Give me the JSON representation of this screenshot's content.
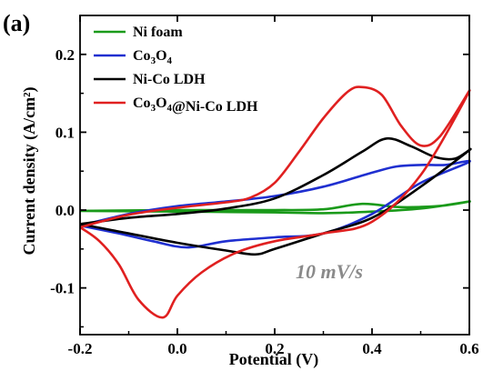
{
  "panel_label": "(a)",
  "annotation": "10 mV/s",
  "chart_data": {
    "type": "line",
    "xlabel": "Potential (V)",
    "ylabel": "Current density (A/cm²)",
    "xlim": [
      -0.2,
      0.6
    ],
    "ylim": [
      -0.16,
      0.25
    ],
    "x_ticks": [
      -0.2,
      0.0,
      0.2,
      0.4,
      0.6
    ],
    "x_tick_labels": [
      "-0.2",
      "0.0",
      "0.2",
      "0.4",
      "0.6"
    ],
    "y_ticks": [
      -0.1,
      0.0,
      0.1,
      0.2
    ],
    "y_tick_labels": [
      "-0.1",
      "0.0",
      "0.1",
      "0.2"
    ],
    "grid": false,
    "legend_position": "top-left",
    "series": [
      {
        "name": "Ni foam",
        "color": "#1a9a1a",
        "points": [
          [
            -0.2,
            -0.001
          ],
          [
            0.0,
            0.0
          ],
          [
            0.2,
            0.0
          ],
          [
            0.3,
            0.001
          ],
          [
            0.38,
            0.008
          ],
          [
            0.45,
            0.004
          ],
          [
            0.5,
            0.004
          ],
          [
            0.55,
            0.006
          ],
          [
            0.6,
            0.011
          ],
          [
            0.5,
            0.002
          ],
          [
            0.4,
            -0.002
          ],
          [
            0.3,
            -0.004
          ],
          [
            0.2,
            -0.003
          ],
          [
            0.0,
            -0.002
          ],
          [
            -0.2,
            -0.001
          ]
        ]
      },
      {
        "name": "Co3O4",
        "color": "#1f2fd0",
        "points": [
          [
            -0.2,
            -0.02
          ],
          [
            -0.1,
            -0.005
          ],
          [
            0.0,
            0.005
          ],
          [
            0.1,
            0.011
          ],
          [
            0.2,
            0.018
          ],
          [
            0.3,
            0.03
          ],
          [
            0.4,
            0.048
          ],
          [
            0.45,
            0.056
          ],
          [
            0.5,
            0.058
          ],
          [
            0.55,
            0.058
          ],
          [
            0.6,
            0.062
          ],
          [
            0.5,
            0.035
          ],
          [
            0.4,
            -0.005
          ],
          [
            0.3,
            -0.03
          ],
          [
            0.2,
            -0.035
          ],
          [
            0.1,
            -0.04
          ],
          [
            0.02,
            -0.048
          ],
          [
            -0.05,
            -0.04
          ],
          [
            -0.12,
            -0.03
          ],
          [
            -0.2,
            -0.02
          ]
        ]
      },
      {
        "name": "Ni-Co LDH",
        "color": "#000000",
        "points": [
          [
            -0.2,
            -0.018
          ],
          [
            -0.1,
            -0.01
          ],
          [
            0.0,
            -0.005
          ],
          [
            0.1,
            0.002
          ],
          [
            0.2,
            0.015
          ],
          [
            0.3,
            0.045
          ],
          [
            0.38,
            0.075
          ],
          [
            0.43,
            0.092
          ],
          [
            0.48,
            0.082
          ],
          [
            0.53,
            0.068
          ],
          [
            0.57,
            0.066
          ],
          [
            0.6,
            0.077
          ],
          [
            0.5,
            0.03
          ],
          [
            0.4,
            -0.01
          ],
          [
            0.3,
            -0.03
          ],
          [
            0.2,
            -0.05
          ],
          [
            0.16,
            -0.057
          ],
          [
            0.1,
            -0.052
          ],
          [
            0.0,
            -0.042
          ],
          [
            -0.1,
            -0.03
          ],
          [
            -0.2,
            -0.018
          ]
        ]
      },
      {
        "name": "Co3O4@Ni-Co LDH",
        "color": "#e02020",
        "points": [
          [
            -0.2,
            -0.022
          ],
          [
            -0.1,
            -0.006
          ],
          [
            0.0,
            0.003
          ],
          [
            0.1,
            0.01
          ],
          [
            0.15,
            0.016
          ],
          [
            0.2,
            0.035
          ],
          [
            0.25,
            0.075
          ],
          [
            0.3,
            0.118
          ],
          [
            0.35,
            0.152
          ],
          [
            0.38,
            0.158
          ],
          [
            0.42,
            0.148
          ],
          [
            0.46,
            0.108
          ],
          [
            0.5,
            0.083
          ],
          [
            0.54,
            0.095
          ],
          [
            0.6,
            0.153
          ],
          [
            0.5,
            0.045
          ],
          [
            0.4,
            -0.015
          ],
          [
            0.3,
            -0.03
          ],
          [
            0.2,
            -0.04
          ],
          [
            0.12,
            -0.055
          ],
          [
            0.05,
            -0.08
          ],
          [
            0.0,
            -0.11
          ],
          [
            -0.03,
            -0.138
          ],
          [
            -0.08,
            -0.115
          ],
          [
            -0.12,
            -0.07
          ],
          [
            -0.16,
            -0.04
          ],
          [
            -0.2,
            -0.022
          ]
        ]
      }
    ]
  }
}
